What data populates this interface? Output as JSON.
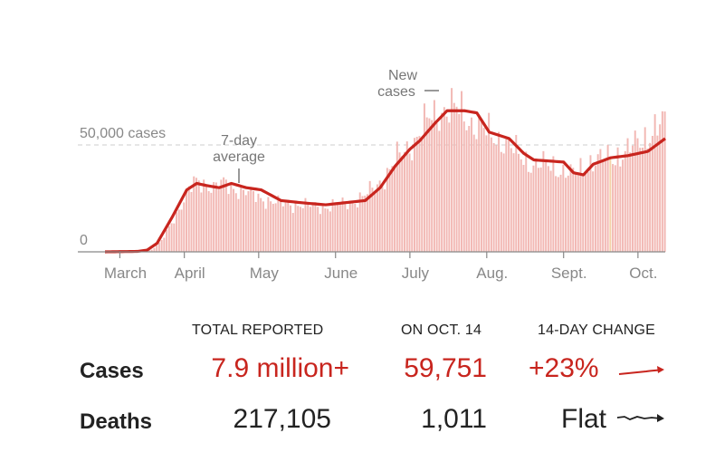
{
  "chart_data": {
    "type": "bar",
    "title": "",
    "xlabel": "",
    "ylabel": "",
    "ylim": [
      0,
      70000
    ],
    "x_tick_labels": [
      "March",
      "April",
      "May",
      "June",
      "July",
      "Aug.",
      "Sept.",
      "Oct."
    ],
    "y_tick_labels": [
      "0",
      "50,000 cases"
    ],
    "y_ticks": [
      0,
      50000
    ],
    "annotations": {
      "new_cases": [
        "New",
        "cases"
      ],
      "avg": [
        "7-day",
        "average"
      ]
    },
    "series": [
      {
        "name": "New cases",
        "type": "bar",
        "color": "#f2b8b4",
        "anchors": [
          [
            1,
            0
          ],
          [
            17,
            200
          ],
          [
            20,
            1000
          ],
          [
            24,
            5000
          ],
          [
            30,
            18000
          ],
          [
            37,
            32000
          ],
          [
            40,
            33000
          ],
          [
            45,
            30000
          ],
          [
            50,
            32000
          ],
          [
            55,
            29000
          ],
          [
            62,
            26000
          ],
          [
            70,
            23000
          ],
          [
            80,
            22000
          ],
          [
            90,
            21000
          ],
          [
            100,
            23000
          ],
          [
            106,
            26000
          ],
          [
            114,
            35000
          ],
          [
            120,
            45000
          ],
          [
            126,
            52000
          ],
          [
            132,
            62000
          ],
          [
            138,
            67000
          ],
          [
            144,
            66000
          ],
          [
            150,
            60000
          ],
          [
            156,
            55000
          ],
          [
            162,
            52000
          ],
          [
            168,
            45000
          ],
          [
            174,
            41000
          ],
          [
            182,
            40000
          ],
          [
            190,
            36000
          ],
          [
            197,
            42000
          ],
          [
            205,
            44000
          ],
          [
            212,
            47000
          ],
          [
            220,
            55000
          ],
          [
            227,
            59751
          ]
        ]
      },
      {
        "name": "7-day average",
        "type": "line",
        "color": "#c8251e",
        "anchors": [
          [
            1,
            0
          ],
          [
            14,
            200
          ],
          [
            18,
            800
          ],
          [
            22,
            4000
          ],
          [
            28,
            16000
          ],
          [
            34,
            29000
          ],
          [
            38,
            32000
          ],
          [
            42,
            31000
          ],
          [
            47,
            30000
          ],
          [
            52,
            32000
          ],
          [
            58,
            30000
          ],
          [
            64,
            29000
          ],
          [
            72,
            24000
          ],
          [
            80,
            23000
          ],
          [
            90,
            22000
          ],
          [
            98,
            23000
          ],
          [
            106,
            24000
          ],
          [
            112,
            30000
          ],
          [
            118,
            40000
          ],
          [
            124,
            48000
          ],
          [
            128,
            52000
          ],
          [
            134,
            60000
          ],
          [
            139,
            66000
          ],
          [
            146,
            66000
          ],
          [
            151,
            65000
          ],
          [
            156,
            56000
          ],
          [
            164,
            53000
          ],
          [
            170,
            46000
          ],
          [
            174,
            43000
          ],
          [
            180,
            42500
          ],
          [
            186,
            42000
          ],
          [
            190,
            37000
          ],
          [
            194,
            36000
          ],
          [
            198,
            41000
          ],
          [
            205,
            44000
          ],
          [
            212,
            45000
          ],
          [
            220,
            47000
          ],
          [
            227,
            53000
          ]
        ]
      }
    ],
    "highlight_day": 205
  },
  "stats": {
    "headers": {
      "total": "TOTAL REPORTED",
      "on_date": "ON OCT. 14",
      "change": "14-DAY CHANGE"
    },
    "rows": [
      {
        "label": "Cases",
        "total": "7.9 million+",
        "on_date": "59,751",
        "change": "+23%"
      },
      {
        "label": "Deaths",
        "total": "217,105",
        "on_date": "1,011",
        "change": "Flat"
      }
    ]
  },
  "colors": {
    "accent_red": "#c8251e",
    "bar_pink": "#f2b8b4",
    "highlight_bar": "#f3d2a8",
    "text_dark": "#222222",
    "axis_gray": "#888888"
  }
}
